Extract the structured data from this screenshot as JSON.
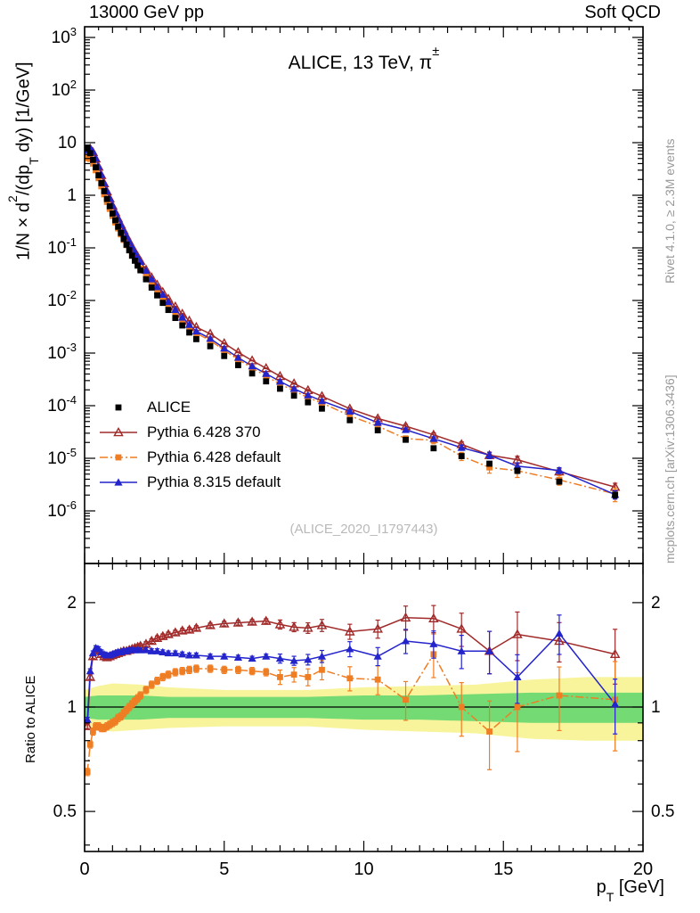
{
  "header": {
    "left": "13000 GeV pp",
    "right": "Soft QCD"
  },
  "side_notes": {
    "top": "Rivet 4.1.0, ≥ 2.3M events",
    "bottom": "mcplots.cern.ch [arXiv:1306.3436]"
  },
  "chart_data": {
    "type": "scatter",
    "labels": {
      "title": "ALICE, 13 TeV, π±",
      "title_parts": {
        "text": "ALICE, 13 TeV, π",
        "sup": "±"
      },
      "y_main": "1/N × d²/(dp_T dy) [1/GeV]",
      "y_main_parts": {
        "pre": "1/N × d",
        "sup": "2",
        "mid": "/(dp",
        "sub": "T",
        "post": " dy) [1/GeV]"
      },
      "y_ratio": "Ratio to ALICE",
      "x": "p_T [GeV]",
      "x_parts": {
        "main": "p",
        "sub": "T",
        "post": " [GeV]"
      },
      "watermark": "(ALICE_2020_I1797443)"
    },
    "axes": {
      "x": {
        "range": [
          0,
          20
        ],
        "major_ticks": [
          0,
          5,
          10,
          15,
          20
        ]
      },
      "y_main": {
        "scale": "log",
        "range": [
          1e-07,
          1600.0
        ],
        "tick_exponents": [
          3,
          2,
          1,
          0,
          -1,
          -2,
          -3,
          -4,
          -5,
          -6
        ]
      },
      "y_ratio": {
        "scale": "log",
        "range": [
          0.383,
          2.59
        ],
        "ticks": [
          0.5,
          1,
          2
        ],
        "tick_labels": [
          "0.5",
          "1",
          "2"
        ],
        "minor_ticks": [
          0.4,
          0.6,
          0.7,
          0.8,
          0.9
        ]
      }
    },
    "pt": [
      0.1,
      0.2,
      0.3,
      0.4,
      0.5,
      0.6,
      0.7,
      0.8,
      0.9,
      1.0,
      1.1,
      1.2,
      1.3,
      1.4,
      1.5,
      1.6,
      1.7,
      1.8,
      1.9,
      2.0,
      2.2,
      2.4,
      2.6,
      2.8,
      3.0,
      3.25,
      3.5,
      3.75,
      4.0,
      4.5,
      5.0,
      5.5,
      6.0,
      6.5,
      7.0,
      7.5,
      8.0,
      8.5,
      9.5,
      10.5,
      11.5,
      12.5,
      13.5,
      14.5,
      15.5,
      17.0,
      19.0
    ],
    "alice": {
      "name": "ALICE",
      "color": "#000000",
      "marker": "square",
      "err_scale": 0.7,
      "values": [
        7.8,
        6.3,
        4.7,
        3.4,
        2.4,
        1.7,
        1.2,
        0.85,
        0.62,
        0.45,
        0.335,
        0.252,
        0.192,
        0.148,
        0.115,
        0.09,
        0.071,
        0.057,
        0.046,
        0.0375,
        0.0253,
        0.0176,
        0.0125,
        0.009,
        0.0066,
        0.00465,
        0.00335,
        0.00246,
        0.00184,
        0.00135,
        0.00088,
        0.00059,
        0.00041,
        0.00029,
        0.00021,
        0.000155,
        0.000116,
        8.8e-05,
        5.3e-05,
        3.4e-05,
        2.25e-05,
        1.55e-05,
        1.1e-05,
        7.9e-06,
        5.8e-06,
        3.6e-06,
        2e-06
      ]
    },
    "series": [
      {
        "name": "Pythia 6.428 370",
        "color": "#a02a2a",
        "marker": "triangle-open",
        "line": "solid",
        "err_scale": 1.0,
        "ratio": [
          0.88,
          1.22,
          1.4,
          1.46,
          1.45,
          1.42,
          1.4,
          1.39,
          1.4,
          1.41,
          1.42,
          1.43,
          1.44,
          1.45,
          1.45,
          1.46,
          1.47,
          1.48,
          1.49,
          1.5,
          1.52,
          1.55,
          1.58,
          1.6,
          1.62,
          1.64,
          1.66,
          1.67,
          1.69,
          1.72,
          1.74,
          1.75,
          1.76,
          1.77,
          1.73,
          1.7,
          1.69,
          1.72,
          1.65,
          1.68,
          1.81,
          1.8,
          1.68,
          1.45,
          1.62,
          1.55,
          1.42
        ]
      },
      {
        "name": "Pythia 6.428 default",
        "color": "#ef7d23",
        "marker": "square",
        "line": "dashdot",
        "err_scale": 1.6,
        "ratio": [
          0.65,
          0.78,
          0.85,
          0.88,
          0.88,
          0.87,
          0.87,
          0.88,
          0.89,
          0.9,
          0.91,
          0.93,
          0.94,
          0.96,
          0.98,
          1.0,
          1.02,
          1.04,
          1.06,
          1.08,
          1.12,
          1.16,
          1.19,
          1.22,
          1.24,
          1.26,
          1.27,
          1.28,
          1.29,
          1.29,
          1.28,
          1.28,
          1.27,
          1.26,
          1.22,
          1.24,
          1.22,
          1.28,
          1.21,
          1.2,
          1.05,
          1.42,
          1.0,
          0.85,
          1.0,
          1.08,
          1.05
        ]
      },
      {
        "name": "Pythia 8.315 default",
        "color": "#2424cc",
        "marker": "triangle",
        "line": "solid",
        "err_scale": 1.0,
        "ratio": [
          0.92,
          1.27,
          1.43,
          1.48,
          1.47,
          1.44,
          1.42,
          1.41,
          1.41,
          1.42,
          1.43,
          1.44,
          1.44,
          1.45,
          1.45,
          1.46,
          1.46,
          1.46,
          1.46,
          1.46,
          1.46,
          1.45,
          1.45,
          1.44,
          1.43,
          1.43,
          1.42,
          1.41,
          1.41,
          1.4,
          1.4,
          1.39,
          1.38,
          1.4,
          1.38,
          1.36,
          1.37,
          1.4,
          1.47,
          1.4,
          1.55,
          1.52,
          1.45,
          1.45,
          1.22,
          1.63,
          1.02
        ]
      }
    ],
    "rel_err": [
      0.015,
      0.015,
      0.015,
      0.015,
      0.015,
      0.015,
      0.015,
      0.015,
      0.015,
      0.015,
      0.015,
      0.015,
      0.015,
      0.015,
      0.015,
      0.015,
      0.015,
      0.015,
      0.015,
      0.015,
      0.015,
      0.015,
      0.015,
      0.015,
      0.015,
      0.015,
      0.015,
      0.015,
      0.015,
      0.015,
      0.015,
      0.015,
      0.015,
      0.015,
      0.03,
      0.03,
      0.035,
      0.04,
      0.05,
      0.06,
      0.08,
      0.09,
      0.11,
      0.14,
      0.16,
      0.13,
      0.18
    ],
    "bands": {
      "yellow_color": "#f8f49c",
      "green_color": "#74da74",
      "x": [
        0,
        0.5,
        1,
        2,
        3,
        5,
        8,
        10,
        12,
        14,
        16,
        18,
        20
      ],
      "yellow_lo": [
        0.88,
        0.86,
        0.85,
        0.86,
        0.87,
        0.88,
        0.88,
        0.86,
        0.85,
        0.84,
        0.81,
        0.8,
        0.8
      ],
      "yellow_hi": [
        1.12,
        1.15,
        1.17,
        1.16,
        1.14,
        1.12,
        1.12,
        1.14,
        1.15,
        1.16,
        1.2,
        1.22,
        1.22
      ],
      "green_lo": [
        0.93,
        0.92,
        0.92,
        0.92,
        0.93,
        0.93,
        0.93,
        0.92,
        0.92,
        0.91,
        0.9,
        0.9,
        0.9
      ],
      "green_hi": [
        1.07,
        1.08,
        1.08,
        1.08,
        1.07,
        1.07,
        1.07,
        1.08,
        1.08,
        1.09,
        1.1,
        1.1,
        1.1
      ]
    }
  }
}
